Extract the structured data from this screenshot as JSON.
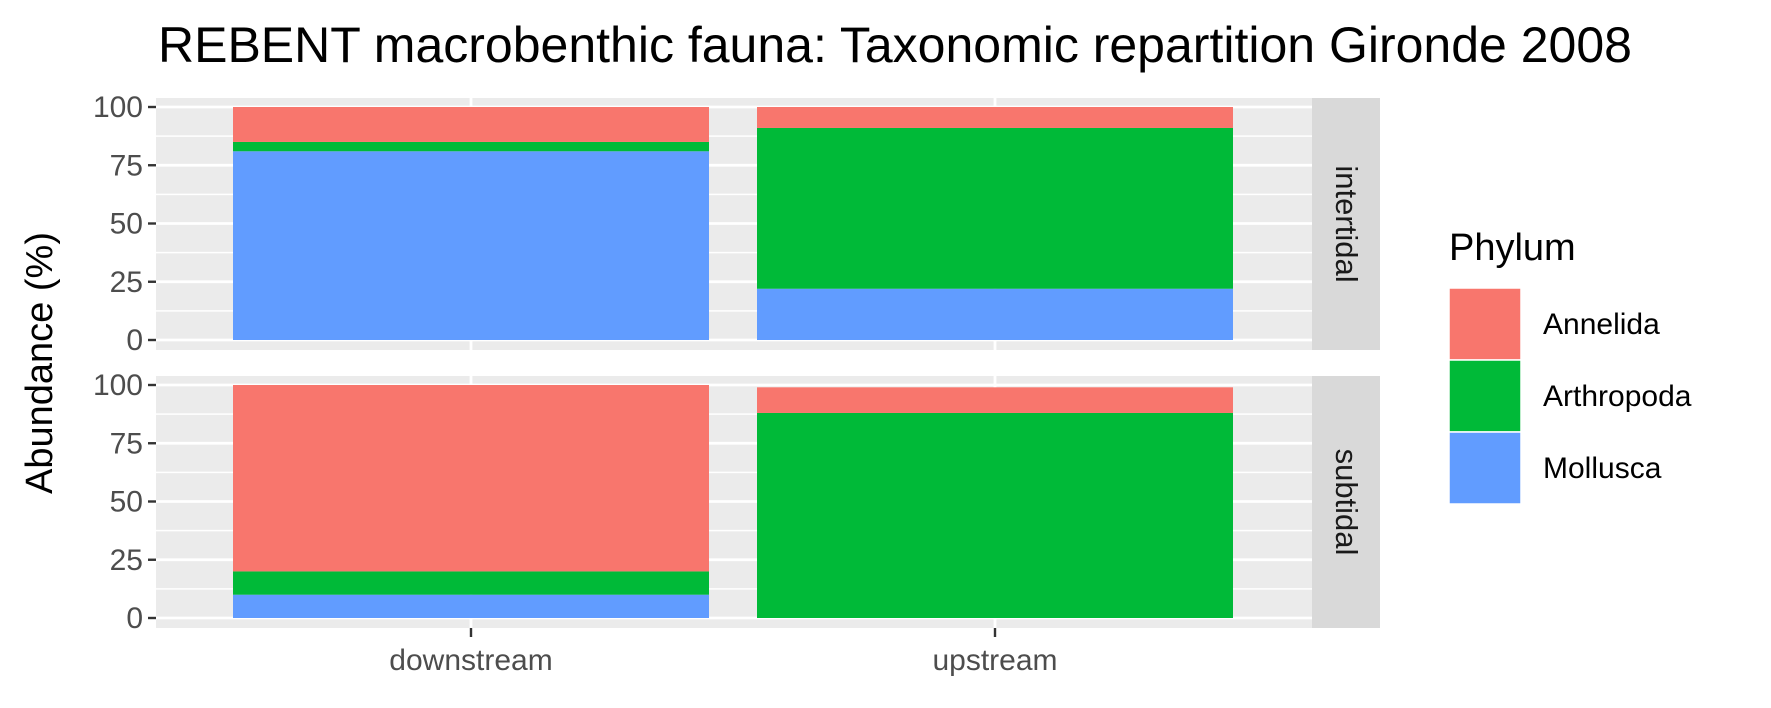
{
  "chart_data": {
    "type": "bar",
    "stacked": true,
    "title": "REBENT macrobenthic fauna: Taxonomic repartition Gironde 2008",
    "xlabel": "",
    "ylabel": "Abundance (%)",
    "categories": [
      "downstream",
      "upstream"
    ],
    "ylim": [
      0,
      100
    ],
    "yticks": [
      0,
      25,
      50,
      75,
      100
    ],
    "grid": true,
    "legend": {
      "title": "Phylum",
      "position": "right"
    },
    "colors": {
      "Annelida": "#F8766D",
      "Arthropoda": "#00BA38",
      "Mollusca": "#619CFF"
    },
    "panels": [
      {
        "facet": "intertidal",
        "series": [
          {
            "name": "Mollusca",
            "values": [
              81,
              22
            ]
          },
          {
            "name": "Arthropoda",
            "values": [
              4,
              69
            ]
          },
          {
            "name": "Annelida",
            "values": [
              15,
              9
            ]
          }
        ]
      },
      {
        "facet": "subtidal",
        "series": [
          {
            "name": "Mollusca",
            "values": [
              10,
              0
            ]
          },
          {
            "name": "Arthropoda",
            "values": [
              10,
              88
            ]
          },
          {
            "name": "Annelida",
            "values": [
              80,
              11
            ]
          }
        ]
      }
    ]
  }
}
